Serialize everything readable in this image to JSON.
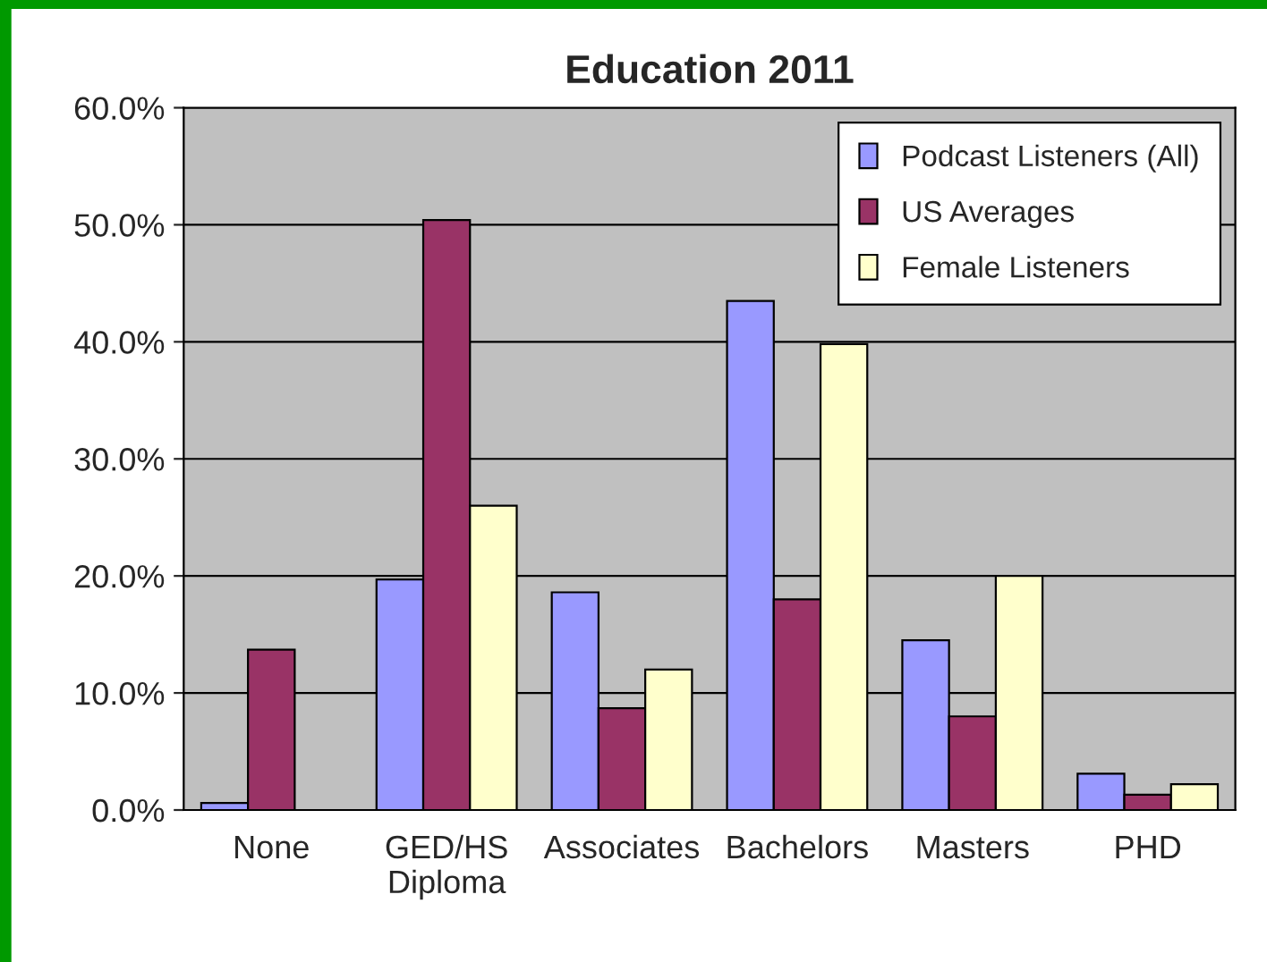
{
  "chart_data": {
    "type": "bar",
    "title": "Education 2011",
    "categories": [
      "None",
      "GED/HS\nDiploma",
      "Associates",
      "Bachelors",
      "Masters",
      "PHD"
    ],
    "series": [
      {
        "name": "Podcast Listeners (All)",
        "color": "#9999ff",
        "values": [
          0.6,
          19.7,
          18.6,
          43.5,
          14.5,
          3.1
        ]
      },
      {
        "name": "US Averages",
        "color": "#993366",
        "values": [
          13.7,
          50.4,
          8.7,
          18.0,
          8.0,
          1.3
        ]
      },
      {
        "name": "Female Listeners",
        "color": "#ffffcc",
        "values": [
          null,
          26.0,
          12.0,
          39.8,
          20.0,
          2.2
        ]
      }
    ],
    "ylim": [
      0,
      60
    ],
    "yticks": [
      {
        "value": 0,
        "label": "0.0%"
      },
      {
        "value": 10,
        "label": "10.0%"
      },
      {
        "value": 20,
        "label": "20.0%"
      },
      {
        "value": 30,
        "label": "30.0%"
      },
      {
        "value": 40,
        "label": "40.0%"
      },
      {
        "value": 50,
        "label": "50.0%"
      },
      {
        "value": 60,
        "label": "60.0%"
      }
    ],
    "grid": "y",
    "legend": "top right"
  }
}
